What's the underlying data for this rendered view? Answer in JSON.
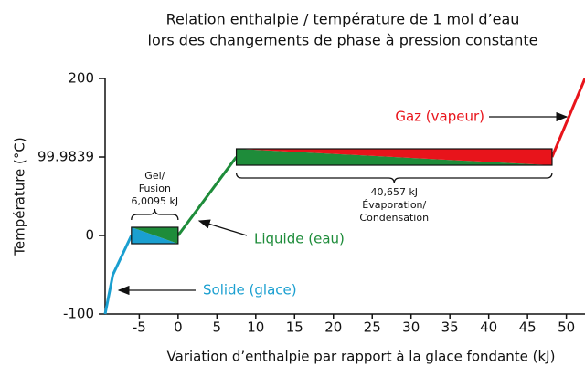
{
  "chart_data": {
    "type": "line",
    "title": [
      "Relation enthalpie / température de 1 mol d’eau",
      "lors des changements de phase à pression constante"
    ],
    "x_label": "Variation d’enthalpie par rapport à la glace fondante (kJ)",
    "y_label": "Température (°C)",
    "xlim": [
      -9.4,
      52.4
    ],
    "xticks": [
      -5,
      0,
      5,
      10,
      15,
      20,
      25,
      30,
      35,
      40,
      45,
      50
    ],
    "ylim": [
      -100,
      200
    ],
    "yticks": [
      -100,
      0,
      99.9839,
      200
    ],
    "series": [
      {
        "name": "Solide (glace)",
        "color": "#1a9fd0",
        "x": [
          -9.4,
          -8.4,
          -6.0095
        ],
        "values": [
          -100,
          -50,
          0
        ]
      },
      {
        "name": "Liquide (eau)",
        "color": "#1e8c3a",
        "x": [
          0,
          7.5
        ],
        "values": [
          0,
          99.9839
        ]
      },
      {
        "name": "Gaz (vapeur)",
        "color": "#e8141b",
        "x": [
          48.157,
          52.4
        ],
        "values": [
          99.9839,
          200
        ]
      }
    ],
    "plateaus": [
      {
        "x": [
          -6.0095,
          0
        ],
        "value": 0,
        "colors": [
          "#1a9fd0",
          "#1e8c3a"
        ],
        "label": [
          "Gel/",
          "Fusion",
          "6,0095 kJ"
        ]
      },
      {
        "x": [
          7.5,
          48.157
        ],
        "value": 99.9839,
        "colors": [
          "#1e8c3a",
          "#e8141b"
        ],
        "label": [
          "40,657 kJ",
          "Évaporation/",
          "Condensation"
        ]
      }
    ]
  }
}
